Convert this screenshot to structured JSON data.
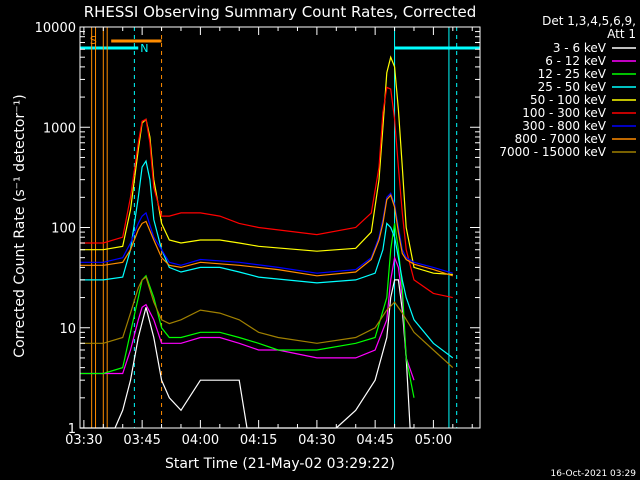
{
  "chart_data": {
    "type": "line",
    "title": "RHESSI Observing Summary Count Rates, Corrected",
    "xlabel": "Start Time (21-May-02 03:29:22)",
    "ylabel": "Corrected Count Rate (s⁻¹ detector⁻¹)",
    "y_scale": "log",
    "xlim": [
      "03:29",
      "05:12"
    ],
    "ylim": [
      1,
      10000
    ],
    "x_ticks": [
      "03:30",
      "03:45",
      "04:00",
      "04:15",
      "04:30",
      "04:45",
      "05:00"
    ],
    "y_ticks": [
      "1",
      "10",
      "100",
      "1000",
      "10000"
    ],
    "grid": false,
    "legend_header": [
      "Det 1,3,4,5,6,9,",
      "Att 1"
    ],
    "footer": "16-Oct-2021 03:29",
    "flag_labels": {
      "saa": "S",
      "night": "N"
    },
    "series": [
      {
        "name": "3 - 6 keV",
        "color": "#ffffff",
        "x": [
          "03:29",
          "03:30",
          "03:38",
          "03:40",
          "03:42",
          "03:44",
          "03:46",
          "03:48",
          "03:50",
          "03:52",
          "03:55",
          "04:00",
          "04:05",
          "04:10",
          "04:12",
          "04:20",
          "04:35",
          "04:40",
          "04:45",
          "04:48",
          "04:49",
          "04:50",
          "04:51",
          "04:52",
          "04:53",
          "04:54",
          "04:55"
        ],
        "y": [
          1,
          1,
          1,
          1.5,
          3,
          8,
          16,
          8,
          3,
          2,
          1.5,
          3,
          3,
          3,
          1,
          1,
          1,
          1.5,
          3,
          8,
          20,
          30,
          30,
          15,
          5,
          1,
          1
        ]
      },
      {
        "name": "6 - 12 keV",
        "color": "#ff00ff",
        "x": [
          "03:29",
          "03:35",
          "03:40",
          "03:42",
          "03:44",
          "03:45",
          "03:46",
          "03:48",
          "03:50",
          "03:52",
          "03:55",
          "04:00",
          "04:05",
          "04:10",
          "04:15",
          "04:20",
          "04:30",
          "04:40",
          "04:45",
          "04:48",
          "04:49",
          "04:50",
          "04:51",
          "04:52",
          "04:53",
          "04:55"
        ],
        "y": [
          3.5,
          3.5,
          3.5,
          6,
          12,
          16,
          17,
          12,
          7,
          7,
          7,
          8,
          8,
          7,
          6,
          6,
          5,
          5,
          6,
          12,
          30,
          50,
          40,
          20,
          5,
          3
        ]
      },
      {
        "name": "12 - 25 keV",
        "color": "#00ff00",
        "x": [
          "03:29",
          "03:35",
          "03:40",
          "03:42",
          "03:44",
          "03:45",
          "03:46",
          "03:48",
          "03:50",
          "03:52",
          "03:55",
          "04:00",
          "04:05",
          "04:10",
          "04:15",
          "04:20",
          "04:30",
          "04:40",
          "04:45",
          "04:48",
          "04:49",
          "04:50",
          "04:51",
          "04:52",
          "04:53",
          "04:55"
        ],
        "y": [
          3.5,
          3.5,
          4,
          9,
          20,
          30,
          33,
          20,
          10,
          8,
          8,
          9,
          9,
          8,
          7,
          6,
          6,
          7,
          8,
          20,
          60,
          110,
          60,
          25,
          5,
          2
        ]
      },
      {
        "name": "25 - 50 keV",
        "color": "#00ffff",
        "x": [
          "03:29",
          "03:35",
          "03:40",
          "03:42",
          "03:44",
          "03:45",
          "03:46",
          "03:47",
          "03:48",
          "03:50",
          "03:52",
          "03:55",
          "04:00",
          "04:05",
          "04:10",
          "04:15",
          "04:30",
          "04:40",
          "04:45",
          "04:47",
          "04:48",
          "04:49",
          "04:50",
          "04:51",
          "04:52",
          "04:53",
          "04:55",
          "05:00",
          "05:05"
        ],
        "y": [
          30,
          30,
          32,
          60,
          200,
          400,
          460,
          300,
          120,
          60,
          40,
          36,
          40,
          40,
          36,
          32,
          28,
          30,
          35,
          60,
          110,
          100,
          80,
          50,
          30,
          20,
          12,
          7,
          5
        ]
      },
      {
        "name": "50 - 100 keV",
        "color": "#ffff00",
        "x": [
          "03:29",
          "03:35",
          "03:40",
          "03:42",
          "03:44",
          "03:45",
          "03:46",
          "03:47",
          "03:48",
          "03:50",
          "03:52",
          "03:55",
          "04:00",
          "04:05",
          "04:10",
          "04:15",
          "04:30",
          "04:40",
          "04:44",
          "04:46",
          "04:47",
          "04:48",
          "04:49",
          "04:50",
          "04:51",
          "04:52",
          "04:53",
          "04:55",
          "05:00",
          "05:05"
        ],
        "y": [
          60,
          60,
          65,
          150,
          600,
          1100,
          1200,
          800,
          300,
          110,
          75,
          70,
          75,
          75,
          70,
          65,
          58,
          62,
          90,
          300,
          1000,
          3500,
          5000,
          4000,
          1500,
          400,
          100,
          40,
          35,
          34
        ]
      },
      {
        "name": "100 - 300 keV",
        "color": "#ff0000",
        "x": [
          "03:29",
          "03:35",
          "03:40",
          "03:42",
          "03:44",
          "03:45",
          "03:46",
          "03:47",
          "03:48",
          "03:50",
          "03:52",
          "03:55",
          "04:00",
          "04:05",
          "04:10",
          "04:15",
          "04:30",
          "04:40",
          "04:44",
          "04:46",
          "04:47",
          "04:48",
          "04:49",
          "04:50",
          "04:51",
          "04:52",
          "04:53",
          "04:55",
          "05:00",
          "05:05"
        ],
        "y": [
          70,
          70,
          80,
          200,
          700,
          1150,
          1200,
          700,
          250,
          130,
          130,
          140,
          140,
          130,
          110,
          100,
          85,
          100,
          140,
          400,
          1400,
          2500,
          2400,
          1200,
          400,
          140,
          60,
          30,
          22,
          20
        ]
      },
      {
        "name": "300 - 800 keV",
        "color": "#0000ff",
        "x": [
          "03:29",
          "03:35",
          "03:40",
          "03:42",
          "03:44",
          "03:45",
          "03:46",
          "03:48",
          "03:50",
          "03:52",
          "03:55",
          "04:00",
          "04:10",
          "04:20",
          "04:30",
          "04:40",
          "04:44",
          "04:46",
          "04:47",
          "04:48",
          "04:49",
          "04:50",
          "04:51",
          "04:52",
          "04:53",
          "04:55",
          "05:00",
          "05:05"
        ],
        "y": [
          45,
          45,
          50,
          70,
          110,
          130,
          140,
          80,
          60,
          45,
          42,
          48,
          45,
          40,
          35,
          38,
          50,
          80,
          120,
          200,
          220,
          170,
          100,
          60,
          50,
          45,
          40,
          35
        ]
      },
      {
        "name": "800 - 7000 keV",
        "color": "#ff8c00",
        "x": [
          "03:29",
          "03:35",
          "03:40",
          "03:42",
          "03:44",
          "03:45",
          "03:46",
          "03:48",
          "03:50",
          "03:52",
          "03:55",
          "04:00",
          "04:10",
          "04:20",
          "04:30",
          "04:40",
          "04:44",
          "04:46",
          "04:47",
          "04:48",
          "04:49",
          "04:50",
          "04:51",
          "04:52",
          "04:53",
          "04:55",
          "05:00",
          "05:05"
        ],
        "y": [
          42,
          42,
          45,
          60,
          95,
          110,
          115,
          75,
          50,
          42,
          40,
          45,
          42,
          38,
          33,
          36,
          48,
          75,
          110,
          190,
          210,
          160,
          90,
          55,
          48,
          43,
          38,
          33
        ]
      },
      {
        "name": "7000 - 15000 keV",
        "color": "#a08000",
        "x": [
          "03:29",
          "03:35",
          "03:40",
          "03:42",
          "03:44",
          "03:45",
          "03:46",
          "03:48",
          "03:50",
          "03:52",
          "03:55",
          "04:00",
          "04:05",
          "04:10",
          "04:15",
          "04:20",
          "04:30",
          "04:40",
          "04:45",
          "04:48",
          "04:50",
          "04:52",
          "04:55",
          "05:00",
          "05:05"
        ],
        "y": [
          7,
          7,
          8,
          14,
          25,
          30,
          32,
          18,
          12,
          11,
          12,
          15,
          14,
          12,
          9,
          8,
          7,
          8,
          10,
          15,
          18,
          14,
          9,
          6,
          4
        ]
      }
    ]
  }
}
